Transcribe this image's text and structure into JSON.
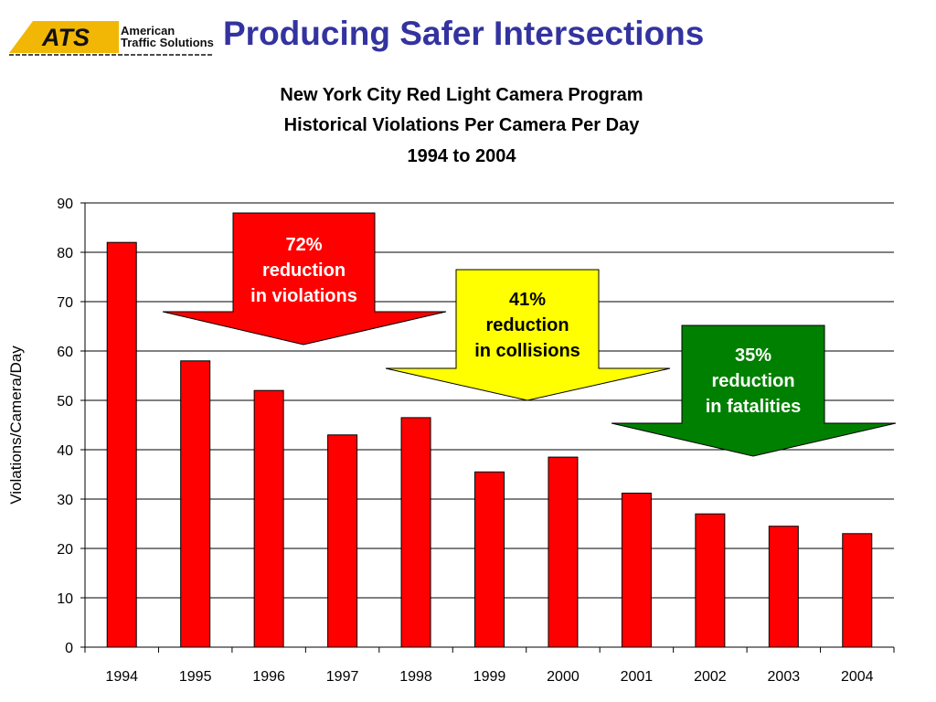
{
  "slide": {
    "title": "Producing Safer Intersections",
    "logo": {
      "mark": "ATS",
      "line1": "American",
      "line2": "Traffic Solutions"
    }
  },
  "chart_data": {
    "type": "bar",
    "title": "New York City Red Light Camera Program",
    "subtitle": "Historical Violations Per Camera Per Day",
    "subtitle2": "1994 to 2004",
    "xlabel": "",
    "ylabel": "Violations/Camera/Day",
    "categories": [
      "1994",
      "1995",
      "1996",
      "1997",
      "1998",
      "1999",
      "2000",
      "2001",
      "2002",
      "2003",
      "2004"
    ],
    "values": [
      82,
      58,
      52,
      43,
      46.5,
      35.5,
      38.5,
      31.2,
      27,
      24.5,
      23
    ],
    "ylim": [
      0,
      90
    ],
    "yticks": [
      0,
      10,
      20,
      30,
      40,
      50,
      60,
      70,
      80,
      90
    ],
    "grid": true,
    "bar_color": "#ff0000",
    "annotations": [
      {
        "lines": [
          "72%",
          "reduction",
          "in violations"
        ],
        "color": "#ff0000",
        "text_color": "#ffffff"
      },
      {
        "lines": [
          "41%",
          "reduction",
          "in collisions"
        ],
        "color": "#ffff00",
        "text_color": "#000000"
      },
      {
        "lines": [
          "35%",
          "reduction",
          "in fatalities"
        ],
        "color": "#008000",
        "text_color": "#ffffff"
      }
    ]
  }
}
